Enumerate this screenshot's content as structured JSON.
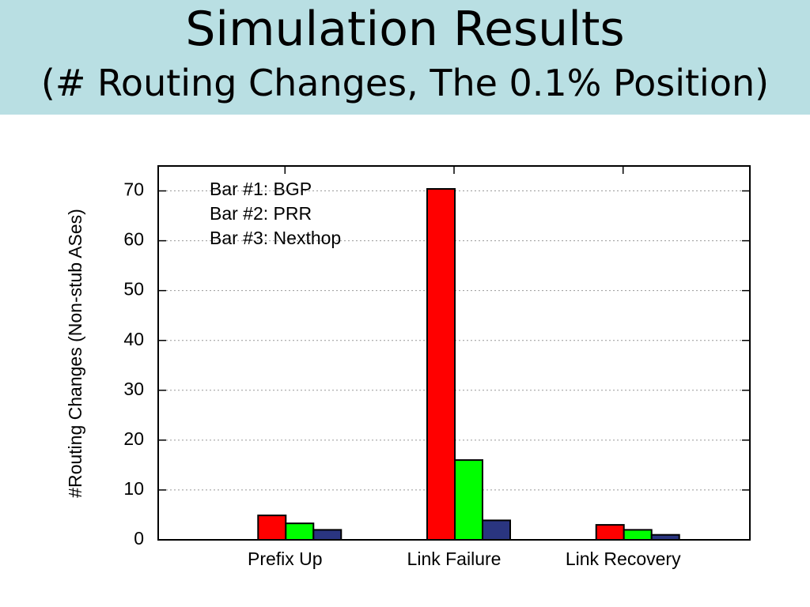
{
  "chart_data": {
    "type": "bar",
    "title": "Simulation Results",
    "subtitle": "(# Routing Changes, The 0.1% Position)",
    "y_label": "#Routing Changes (Non-stub ASes)",
    "categories": [
      "Prefix Up",
      "Link Failure",
      "Link Recovery"
    ],
    "series": [
      {
        "name": "Bar #1: BGP",
        "color": "#ff0000",
        "values": [
          4.9,
          70.4,
          3.0
        ]
      },
      {
        "name": "Bar #2: PRR",
        "color": "#00ff00",
        "values": [
          3.3,
          16.0,
          2.0
        ]
      },
      {
        "name": "Bar #3: Nexthop",
        "color": "#2a3580",
        "values": [
          2.0,
          3.9,
          1.0
        ]
      }
    ],
    "ylim": [
      0,
      75
    ],
    "yticks": [
      0,
      10,
      20,
      30,
      40,
      50,
      60,
      70
    ],
    "grid": true
  }
}
